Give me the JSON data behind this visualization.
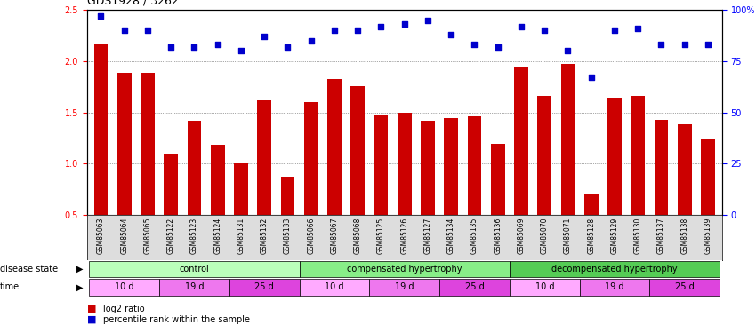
{
  "title": "GDS1928 / 3262",
  "samples": [
    "GSM85063",
    "GSM85064",
    "GSM85065",
    "GSM85122",
    "GSM85123",
    "GSM85124",
    "GSM85131",
    "GSM85132",
    "GSM85133",
    "GSM85066",
    "GSM85067",
    "GSM85068",
    "GSM85125",
    "GSM85126",
    "GSM85127",
    "GSM85134",
    "GSM85135",
    "GSM85136",
    "GSM85069",
    "GSM85070",
    "GSM85071",
    "GSM85128",
    "GSM85129",
    "GSM85130",
    "GSM85137",
    "GSM85138",
    "GSM85139"
  ],
  "log2_ratio": [
    2.17,
    1.89,
    1.89,
    1.1,
    1.42,
    1.18,
    1.01,
    1.62,
    0.87,
    1.6,
    1.83,
    1.76,
    1.48,
    1.5,
    1.42,
    1.44,
    1.46,
    1.19,
    1.95,
    1.66,
    1.97,
    0.7,
    1.64,
    1.66,
    1.43,
    1.38,
    1.24
  ],
  "percentile": [
    97,
    90,
    90,
    82,
    82,
    83,
    80,
    87,
    82,
    85,
    90,
    90,
    92,
    93,
    95,
    88,
    83,
    82,
    92,
    90,
    80,
    67,
    90,
    91,
    83,
    83,
    83
  ],
  "bar_color": "#cc0000",
  "dot_color": "#0000cc",
  "ylim_left": [
    0.5,
    2.5
  ],
  "ylim_right": [
    0,
    100
  ],
  "yticks_left": [
    0.5,
    1.0,
    1.5,
    2.0,
    2.5
  ],
  "yticks_right": [
    0,
    25,
    50,
    75,
    100
  ],
  "yticklabels_right": [
    "0",
    "25",
    "50",
    "75",
    "100%"
  ],
  "disease_groups": [
    {
      "label": "control",
      "start": 0,
      "end": 9,
      "color": "#bbffbb"
    },
    {
      "label": "compensated hypertrophy",
      "start": 9,
      "end": 18,
      "color": "#88ee88"
    },
    {
      "label": "decompensated hypertrophy",
      "start": 18,
      "end": 27,
      "color": "#55cc55"
    }
  ],
  "time_groups": [
    {
      "label": "10 d",
      "start": 0,
      "end": 3,
      "color": "#ffaaff"
    },
    {
      "label": "19 d",
      "start": 3,
      "end": 6,
      "color": "#ee77ee"
    },
    {
      "label": "25 d",
      "start": 6,
      "end": 9,
      "color": "#dd44dd"
    },
    {
      "label": "10 d",
      "start": 9,
      "end": 12,
      "color": "#ffaaff"
    },
    {
      "label": "19 d",
      "start": 12,
      "end": 15,
      "color": "#ee77ee"
    },
    {
      "label": "25 d",
      "start": 15,
      "end": 18,
      "color": "#dd44dd"
    },
    {
      "label": "10 d",
      "start": 18,
      "end": 21,
      "color": "#ffaaff"
    },
    {
      "label": "19 d",
      "start": 21,
      "end": 24,
      "color": "#ee77ee"
    },
    {
      "label": "25 d",
      "start": 24,
      "end": 27,
      "color": "#dd44dd"
    }
  ],
  "disease_state_label": "disease state",
  "time_label": "time",
  "legend_log2": "log2 ratio",
  "legend_pct": "percentile rank within the sample",
  "grid_color": "#555555",
  "bg_color": "#ffffff",
  "xtick_bg": "#dddddd"
}
